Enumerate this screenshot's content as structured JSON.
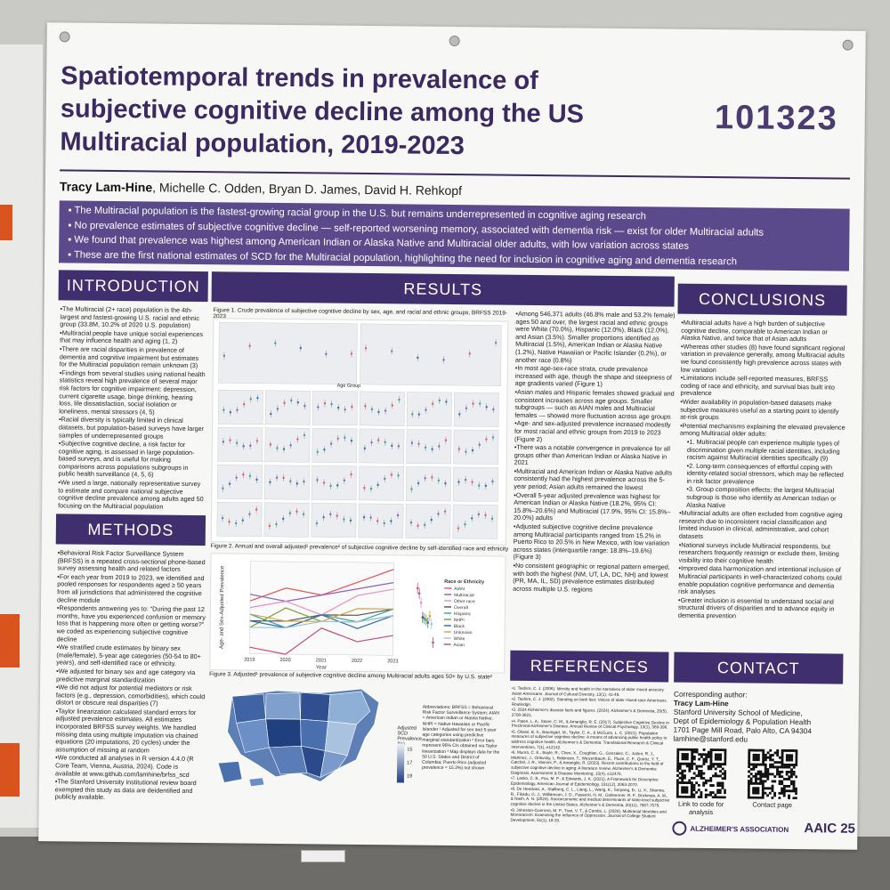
{
  "poster": {
    "title": "Spatiotemporal trends in prevalence of subjective cognitive decline among the US Multiracial population, 2019-2023",
    "number": "101323",
    "lead_author": "Tracy Lam-Hine",
    "coauthors": ", Michelle C. Odden, Bryan D. James, David H. Rehkopf",
    "summary": [
      "The Multiracial population is the fastest-growing racial group in the U.S. but remains underrepresented in cognitive aging research",
      "No prevalence estimates of subjective cognitive decline — self-reported worsening memory, associated with dementia risk — exist for older Multiracial adults",
      "We found that prevalence was highest among American Indian or Alaska Native and Multiracial older adults, with low variation across states",
      "These are the first national estimates of SCD for the Multiracial population, highlighting the need for inclusion in cognitive aging and dementia research"
    ]
  },
  "sections": {
    "introduction": "INTRODUCTION",
    "results": "RESULTS",
    "conclusions": "CONCLUSIONS",
    "methods": "METHODS",
    "references": "REFERENCES",
    "contact": "CONTACT"
  },
  "introduction_items": [
    "The Multiracial (2+ race) population is the 4th-largest and fastest-growing U.S. racial and ethnic group (33.8M, 10.2% of 2020 U.S. population)",
    "Multiracial people have unique social experiences that may influence health and aging (1, 2)",
    "There are racial disparities in prevalence of dementia and cognitive impairment but estimates for the Multiracial population remain unknown (3)",
    "Findings from several studies using national health statistics reveal high prevalence of several major risk factors for cognitive impairment: depression, current cigarette usage, binge drinking, hearing loss, life dissatisfaction, social isolation or loneliness, mental stressors (4, 5)",
    "Racial diversity is typically limited in clinical datasets, but population-based surveys have larger samples of underrepresented groups",
    "Subjective cognitive decline, a risk factor for cognitive aging, is assessed in large population-based surveys, and is useful for making comparisons across populations subgroups in public health surveillance (4, 5, 6)",
    "We used a large, nationally representative survey to estimate and compare national subjective cognitive decline prevalence among adults aged 50 focusing on the Multiracial population"
  ],
  "methods_items": [
    "Behavioral Risk Factor Surveillance System (BRFSS) is a repeated cross-sectional phone-based survey assessing health and related factors",
    "For each year from 2019 to 2023, we identified and pooled responses for respondents aged ≥ 50 years from all jurisdictions that administered the cognitive decline module",
    "Respondents answering yes to: “During the past 12 months, have you experienced confusion or memory loss that is happening more often or getting worse?” we coded as experiencing subjective cognitive decline",
    "We stratified crude estimates by binary sex (male/female), 5-year age categories (50-54 to 80+ years), and self-identified race or ethnicity.",
    "We adjusted for binary sex and age category via predictive marginal standardization",
    "We did not adjust for potential mediators or risk factors (e.g., depression, comorbidities), which could distort or obscure real disparities (7)",
    "Taylor linearization calculated standard errors for adjusted prevalence estimates. All estimates incorporated BRFSS survey weights. We handled missing data using multiple imputation via chained equations (20 imputations, 20 cycles) under the assumption of missing at random",
    "We conducted all analyses in R version 4.4.0 (R Core Team, Vienna, Austria, 2024). Code is available at www.github.com/lamhine/brfss_scd",
    "The Stanford University institutional review board exempted this study as data are deidentified and publicly available."
  ],
  "results_items": [
    "Among 546,371 adults (46.8% male and 53.2% female) ages 50 and over, the largest racial and ethnic groups were White (70.0%), Hispanic (12.0%), Black (12.0%), and Asian (3.5%). Smaller proportions identified as Multiracial (1.5%), American Indian or Alaska Native (1.2%), Native Hawaiian or Pacific Islander (0.2%), or another race (0.8%)",
    "In most age-sex-race strata, crude prevalence increased with age, though the shape and steepness of age gradients varied (Figure 1)",
    "Asian males and Hispanic females showed gradual and consistent increases across age groups. Smaller subgroups — such as AIAN males and Multiracial females — showed more fluctuation across age groups",
    "Age- and sex-adjusted prevalence increased modestly for most racial and ethnic groups from 2019 to 2023 (Figure 2)",
    "There was a notable convergence in prevalence for all groups other than American Indian or Alaska Native in 2021",
    "Multiracial and American Indian or Alaska Native adults consistently had the highest prevalence across the 5-year period; Asian adults remained the lowest",
    "Overall 5-year adjusted prevalence was highest for American Indian or Alaska Native (18.2%, 95% CI: 15.8%–20.6%) and Multiracial (17.9%, 95% CI: 15.8%–20.0%) adults",
    "Adjusted subjective cognitive decline prevalence among Multiracial participants ranged from 15.2% in Puerto Rico to 20.5% in New Mexico, with low variation across states (interquartile range: 18.8%–19.6%) (Figure 3)",
    "No consistent geographic or regional pattern emerged, with both the highest (NM, UT, LA, DC, NH) and lowest (PR, MA, IL, SD) prevalence estimates distributed across multiple U.S. regions"
  ],
  "conclusions_items": [
    "Multiracial adults have a high burden of subjective cognitive decline, comparable to American Indian or Alaska Native, and twice that of Asian adults",
    "Whereas other studies (8) have found significant regional variation in prevalence generally, among Multiracial adults we found consistently high prevalence across states with low variation",
    "Limitations include self-reported measures, BRFSS coding of race and ethnicity, and survival bias built into prevalence",
    "Wider availability in population-based datasets make subjective measures useful as a starting point to identify at-risk groups",
    "Potential mechanisms explaining the elevated prevalence among Multiracial older adults:",
    "1. Multiracial people can experience multiple types of discrimination given multiple racial identities, including racism against Multiracial identities specifically (9)",
    "2. Long-term consequences of effortful coping with identity-related social stressors, which may be reflected in risk factor prevalence",
    "3. Group composition effects: the largest Multiracial subgroup is those who identify as American Indian or Alaska Native",
    "Multiracial adults are often excluded from cognitive aging research due to inconsistent racial classification and limited inclusion in clinical, administrative, and cohort datasets",
    "National surveys include Multiracial respondents, but researchers frequently reassign or exclude them, limiting visibility into their cognitive health",
    "Improved data harmonization and intentional inclusion of Multiracial participants in well-characterized cohorts could enable population cognitive performance and dementia risk analyses",
    "Greater inclusion is essential to understand social and structural drivers of disparities and to advance equity in dementia prevention"
  ],
  "figures": {
    "fig1_caption": "Figure 1. Crude prevalence of subjective cognitive decline by sex, age, and racial and ethnic groups, BRFSS 2019-2023",
    "fig2_caption": "Figure 2. Annual and overall adjusted¹ prevalence² of subjective cognitive decline by self-identified race and ethnicity",
    "fig3_caption": "Figure 3. Adjusted¹ prevalence of subjective cognitive decline among Multiracial adults ages 50+ by U.S. state²",
    "fig1_xlabel": "Age Group",
    "fig2_ylabel": "Age- and Sex-Adjusted Prevalence",
    "fig2_xlabel": "Year",
    "fig2_legend_title": "Race or Ethnicity",
    "fig2_legend": [
      "AIAN",
      "Multiracial",
      "Other race",
      "Overall",
      "Hispanic",
      "NHPI",
      "Black",
      "Unknown",
      "White",
      "Asian"
    ],
    "fig2_colors": [
      "#e4575c",
      "#8c5fc1",
      "#e98fbe",
      "#555555",
      "#3aa0a4",
      "#7aa23c",
      "#2e6fb1",
      "#d9a33c",
      "#9ec5de",
      "#c54a7d"
    ],
    "fig3_legend_title": "Adjusted SCD Prevalence (%)",
    "fig3_legend_values": [
      "15",
      "17",
      "19"
    ],
    "fig3_notes": "Abbreviations: BRFSS = Behavioral Risk Factor Surveillance System; AIAN = American Indian or Alaska Native; NHPI = Native Hawaiian or Pacific Islander ¹ Adjusted for sex and 5-year age categories using predictive marginal standardization ² Error bars represent 95% CIs obtained via Taylor linearization ³ Map displays data for the 50 U.S. States and District of Columbia; Puerto Rico (adjusted prevalence = 15.2%) not shown"
  },
  "chart_data": [
    {
      "type": "line",
      "title": "Figure 2. Annual and overall adjusted¹ prevalence² of subjective cognitive decline by self-identified race and ethnicity",
      "xlabel": "Year",
      "ylabel": "Age- and Sex-Adjusted Prevalence",
      "x": [
        "2019",
        "2020",
        "2021",
        "2022",
        "2023"
      ],
      "ylim": [
        0.08,
        0.22
      ],
      "series": [
        {
          "name": "AIAN",
          "values": [
            0.16,
            0.18,
            0.17,
            0.19,
            0.21
          ]
        },
        {
          "name": "Multiracial",
          "values": [
            0.17,
            0.16,
            0.17,
            0.18,
            0.19
          ]
        },
        {
          "name": "Other race",
          "values": [
            0.15,
            0.16,
            0.14,
            0.17,
            0.18
          ]
        },
        {
          "name": "Overall",
          "values": [
            0.13,
            0.13,
            0.14,
            0.14,
            0.15
          ]
        },
        {
          "name": "Hispanic",
          "values": [
            0.14,
            0.12,
            0.14,
            0.13,
            0.15
          ]
        },
        {
          "name": "NHPI",
          "values": [
            0.12,
            0.15,
            0.13,
            0.13,
            0.14
          ]
        },
        {
          "name": "Black",
          "values": [
            0.13,
            0.12,
            0.14,
            0.12,
            0.14
          ]
        },
        {
          "name": "Unknown",
          "values": [
            0.14,
            0.13,
            0.13,
            0.15,
            0.15
          ]
        },
        {
          "name": "White",
          "values": [
            0.12,
            0.12,
            0.13,
            0.13,
            0.14
          ]
        },
        {
          "name": "Asian",
          "values": [
            0.09,
            0.08,
            0.12,
            0.1,
            0.11
          ]
        }
      ]
    }
  ],
  "references_items": [
    "1. Tashiro, C. J. (2006). Identity and health in the narratives of older mixed ancestry Asian Americans. Journal of Cultural Diversity, 13(1), 41-49.",
    "2. Tashiro, C. J. (2002). Standing on both feet: Voices of older mixed-race Americans. Routledge.",
    "3. 2024 Alzheimer's disease facts and figures. (2024). Alzheimer's & Dementia, 20(5), 3708-3821.",
    "4. Paten, L. A., Stone, C. M., & Amariglio, R. E. (2017). Subjective Cognitive Decline in Preclinical Alzheimer's Disease. Annual Review of Clinical Psychology, 13(1), 369-396.",
    "5. Olivari, B. S., Baumgart, M., Taylor, C. A., & McGuire, L. C. (2021). Population measures of subjective cognitive decline: A means of advancing public health policy to address cognitive health. Alzheimer's & Dementia: Translational Research & Clinical Interventions, 7(1), e12142.",
    "6. Munro, C. E., Boyle, R., Chen, X., Coughlan, G., Gonzalez, C., Jutten, R. J., Martinez, J., Orlovsky, I., Robinson, T., Weizenbaum, E., Pluim, C. F., Quiroz, Y. T., Gatchel, J. R., Vannini, P., & Amariglio, R. (2023). Recent contributions to the field of subjective cognitive decline in aging: A literature review. Alzheimer's & Dementia: Diagnosis, Assessment & Disease Monitoring, 15(4), e12475.",
    "7. Lasko, C. B., Fox, M. P., & Edwards, J. K. (2021). A Framework for Descriptive Epidemiology. American Journal of Epidemiology, 191(12), 2063-2070.",
    "8. De Heedvan, A., Stallberg, C. L., Liang, L., Wang, K., Serpong, D., Li, X., Sharma, R., Fikadu, G. J., Williamson, J. D., Pasarcki, N. M., Gotleenner, R. F., Brickman, A. M., & Nash, A. N. (2024). Socioeconomic and medical determinants of state-level subjective cognitive decline in the United States. Alzheimer's & Dementia, 20(11), 7567-7579.",
    "9. Johnston-Guerrero, M. P., Tran, V. T., & Combs, L. (2020). Multiracial Identities and Monoracism: Examining the Influence of Oppression. Journal of College Student Development, 61(1), 18-33."
  ],
  "contact": {
    "label": "Corresponding author:",
    "name": "Tracy Lam-Hine",
    "affiliation": "Stanford University School of Medicine,",
    "dept": "Dept of Epidemiology & Population Health",
    "address": "1701 Page Mill Road, Palo Alto, CA 94304",
    "email": "lamhine@stanford.edu",
    "qr1_label": "Link to code for analysis",
    "qr2_label": "Contact page"
  },
  "logos": {
    "alz": "ALZHEIMER'S ASSOCIATION",
    "aaic": "AAIC 25"
  }
}
